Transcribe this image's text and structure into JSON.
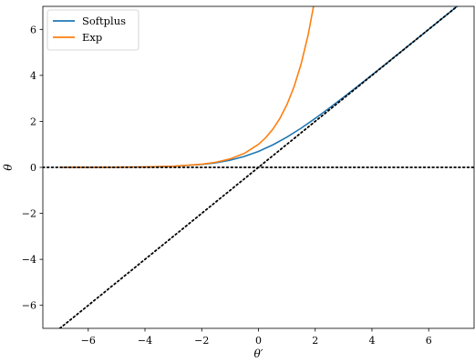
{
  "chart_data": {
    "type": "line",
    "xlabel": "θ′",
    "ylabel": "θ",
    "xlim": [
      -7.6,
      7.6
    ],
    "ylim": [
      -7,
      7
    ],
    "xticks": [
      -6,
      -4,
      -2,
      0,
      2,
      4,
      6
    ],
    "yticks": [
      -6,
      -4,
      -2,
      0,
      2,
      4,
      6
    ],
    "xtick_labels": [
      "−6",
      "−4",
      "−2",
      "0",
      "2",
      "4",
      "6"
    ],
    "ytick_labels": [
      "−6",
      "−4",
      "−2",
      "0",
      "2",
      "4",
      "6"
    ],
    "grid": false,
    "legend_position": "top-left",
    "series": [
      {
        "name": "Softplus",
        "color": "#1f77b4",
        "style": "solid",
        "x": [
          -7,
          -6,
          -5,
          -4,
          -3,
          -2,
          -1.5,
          -1,
          -0.5,
          0,
          0.5,
          1,
          1.5,
          2,
          2.5,
          3,
          3.5,
          4,
          4.5,
          5,
          5.5,
          6,
          6.5,
          7
        ],
        "y": [
          0.001,
          0.002,
          0.007,
          0.018,
          0.049,
          0.127,
          0.201,
          0.313,
          0.474,
          0.693,
          0.974,
          1.313,
          1.701,
          2.127,
          2.579,
          3.049,
          3.53,
          4.018,
          4.511,
          5.007,
          5.504,
          6.002,
          6.502,
          7.001
        ]
      },
      {
        "name": "Exp",
        "color": "#ff7f0e",
        "style": "solid",
        "x": [
          -7,
          -6,
          -5,
          -4,
          -3,
          -2,
          -1.5,
          -1,
          -0.5,
          0,
          0.25,
          0.5,
          0.75,
          1,
          1.25,
          1.5,
          1.75,
          2
        ],
        "y": [
          0.001,
          0.002,
          0.007,
          0.018,
          0.05,
          0.135,
          0.223,
          0.368,
          0.607,
          1.0,
          1.284,
          1.649,
          2.117,
          2.718,
          3.49,
          4.482,
          5.755,
          7.389
        ]
      },
      {
        "name": "",
        "color": "#000000",
        "style": "dotted",
        "x": [
          -7,
          7.6
        ],
        "y": [
          -7,
          7.6
        ]
      },
      {
        "name": "",
        "color": "#000000",
        "style": "dotted",
        "x": [
          -7.6,
          7.6
        ],
        "y": [
          0,
          0
        ]
      }
    ]
  }
}
